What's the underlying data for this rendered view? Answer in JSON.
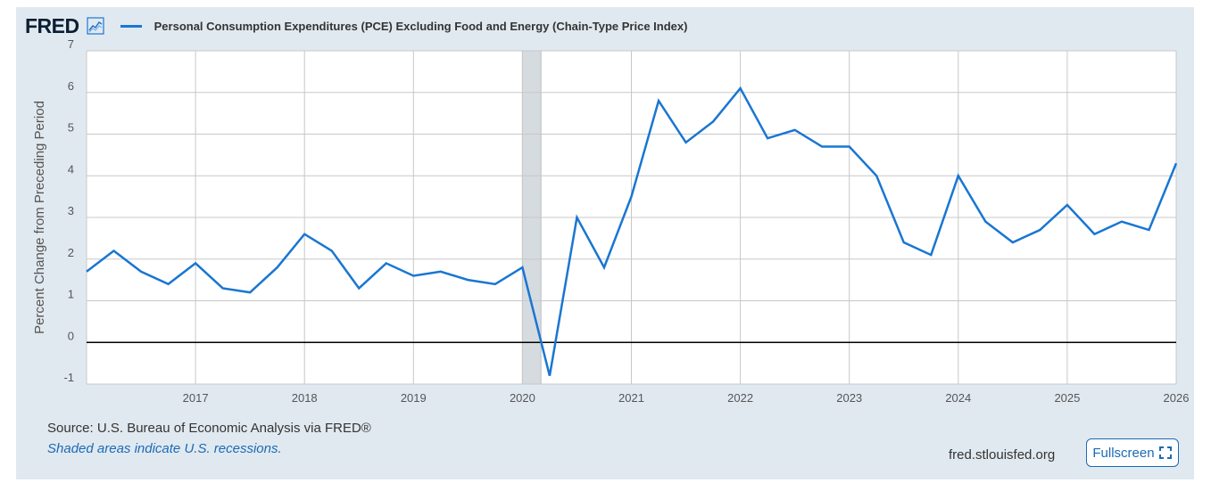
{
  "header": {
    "logo_text": "FRED",
    "series_label": "Personal Consumption Expenditures (PCE) Excluding Food and Energy (Chain-Type Price Index)"
  },
  "footer": {
    "source": "Source: U.S. Bureau of Economic Analysis via FRED®",
    "note": "Shaded areas indicate U.S. recessions.",
    "url": "fred.stlouisfed.org",
    "fullscreen_label": "Fullscreen"
  },
  "colors": {
    "panel_bg": "#e1e9f0",
    "line": "#1976d2",
    "grid": "#c8c8c8",
    "zero_line": "#000000",
    "recession": "#d6dbe0"
  },
  "chart_data": {
    "type": "line",
    "title": "",
    "xlabel": "",
    "ylabel": "Percent Change from Preceding Period",
    "ylim": [
      -1,
      7
    ],
    "xlim": [
      2016.0,
      2026.0
    ],
    "y_ticks": [
      "-1",
      "0",
      "1",
      "2",
      "3",
      "4",
      "5",
      "6",
      "7"
    ],
    "x_ticks": [
      "2017",
      "2018",
      "2019",
      "2020",
      "2021",
      "2022",
      "2023",
      "2024",
      "2025",
      "2026"
    ],
    "recessions": [
      [
        2020.0,
        2020.17
      ]
    ],
    "grid": true,
    "series": [
      {
        "name": "Personal Consumption Expenditures (PCE) Excluding Food and Energy (Chain-Type Price Index)",
        "x": [
          2016.0,
          2016.25,
          2016.5,
          2016.75,
          2017.0,
          2017.25,
          2017.5,
          2017.75,
          2018.0,
          2018.25,
          2018.5,
          2018.75,
          2019.0,
          2019.25,
          2019.5,
          2019.75,
          2020.0,
          2020.25,
          2020.5,
          2020.75,
          2021.0,
          2021.25,
          2021.5,
          2021.75,
          2022.0,
          2022.25,
          2022.5,
          2022.75,
          2023.0,
          2023.25,
          2023.5,
          2023.75,
          2024.0,
          2024.25,
          2024.5,
          2024.75,
          2025.0,
          2025.25,
          2025.5,
          2025.75,
          2026.0
        ],
        "values": [
          1.7,
          2.2,
          1.7,
          1.4,
          1.9,
          1.3,
          1.2,
          1.8,
          2.6,
          2.2,
          1.3,
          1.9,
          1.6,
          1.7,
          1.5,
          1.4,
          1.8,
          -0.8,
          3.0,
          1.8,
          3.5,
          5.8,
          4.8,
          5.3,
          6.1,
          4.9,
          5.1,
          4.7,
          4.7,
          4.0,
          2.4,
          2.1,
          4.0,
          2.9,
          2.4,
          2.7,
          3.3,
          2.6,
          2.9,
          2.7,
          4.3
        ]
      }
    ]
  }
}
